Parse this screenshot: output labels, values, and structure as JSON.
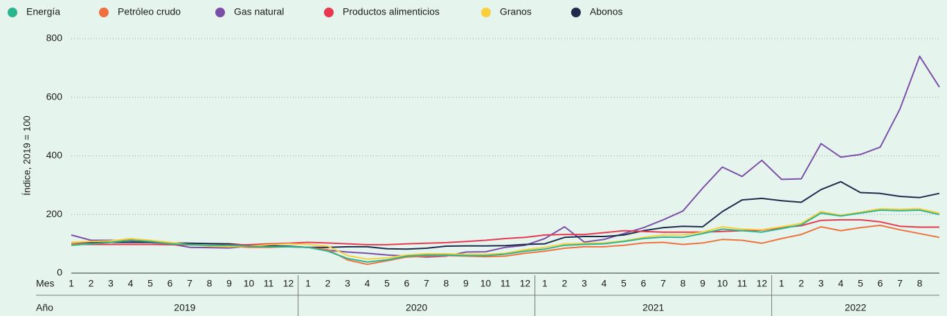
{
  "chart_data": {
    "type": "line",
    "ylabel": "Índice, 2019 = 100",
    "x_row_labels": [
      "Mes",
      "Año"
    ],
    "x_groups": [
      "2019",
      "2020",
      "2021",
      "2022"
    ],
    "categories": [
      1,
      2,
      3,
      4,
      5,
      6,
      7,
      8,
      9,
      10,
      11,
      12,
      1,
      2,
      3,
      4,
      5,
      6,
      7,
      8,
      9,
      10,
      11,
      12,
      1,
      2,
      3,
      4,
      5,
      6,
      7,
      8,
      9,
      10,
      11,
      12,
      1,
      2,
      3,
      4,
      5,
      6,
      7,
      8,
      null
    ],
    "ylim": [
      0,
      800
    ],
    "yticks": [
      0,
      200,
      400,
      600,
      800
    ],
    "grid": true,
    "legend": "top",
    "series": [
      {
        "name": "Energía",
        "color": "#2bb58f",
        "values": [
          95,
          100,
          105,
          112,
          108,
          100,
          97,
          95,
          95,
          92,
          90,
          90,
          88,
          75,
          50,
          38,
          45,
          58,
          62,
          62,
          60,
          60,
          65,
          75,
          82,
          95,
          98,
          100,
          108,
          118,
          123,
          122,
          135,
          150,
          145,
          140,
          152,
          165,
          205,
          195,
          205,
          215,
          213,
          215,
          200
        ]
      },
      {
        "name": "Petróleo crudo",
        "color": "#f0703d",
        "values": [
          100,
          100,
          105,
          115,
          110,
          100,
          97,
          95,
          92,
          88,
          88,
          90,
          88,
          80,
          45,
          30,
          42,
          55,
          58,
          60,
          58,
          56,
          58,
          68,
          75,
          85,
          90,
          90,
          95,
          103,
          105,
          98,
          103,
          115,
          112,
          102,
          118,
          132,
          158,
          145,
          155,
          163,
          148,
          135,
          122
        ]
      },
      {
        "name": "Gas natural",
        "color": "#7b4ea8",
        "values": [
          130,
          112,
          112,
          110,
          105,
          100,
          88,
          87,
          86,
          92,
          95,
          90,
          88,
          78,
          72,
          68,
          62,
          58,
          55,
          58,
          72,
          73,
          88,
          95,
          118,
          158,
          106,
          115,
          135,
          155,
          182,
          212,
          290,
          362,
          330,
          385,
          320,
          322,
          442,
          396,
          405,
          430,
          560,
          740,
          635
        ]
      },
      {
        "name": "Productos alimenticios",
        "color": "#e8374f",
        "values": [
          98,
          98,
          98,
          98,
          98,
          97,
          96,
          95,
          96,
          97,
          100,
          102,
          105,
          103,
          100,
          97,
          97,
          100,
          102,
          104,
          108,
          112,
          118,
          122,
          130,
          132,
          132,
          138,
          145,
          142,
          140,
          140,
          140,
          142,
          145,
          147,
          155,
          162,
          180,
          182,
          182,
          175,
          160,
          157,
          157
        ]
      },
      {
        "name": "Granos",
        "color": "#f9cf3e",
        "values": [
          105,
          108,
          110,
          118,
          112,
          105,
          97,
          92,
          90,
          92,
          97,
          100,
          98,
          92,
          60,
          48,
          52,
          62,
          66,
          66,
          64,
          64,
          68,
          80,
          88,
          100,
          102,
          103,
          110,
          122,
          130,
          130,
          140,
          158,
          150,
          148,
          158,
          170,
          210,
          198,
          208,
          220,
          218,
          220,
          205
        ]
      },
      {
        "name": "Abonos",
        "color": "#1e2a4c",
        "values": [
          105,
          105,
          105,
          105,
          105,
          103,
          102,
          101,
          100,
          95,
          93,
          92,
          88,
          88,
          90,
          90,
          83,
          82,
          85,
          92,
          93,
          93,
          94,
          98,
          100,
          122,
          125,
          125,
          130,
          145,
          155,
          160,
          158,
          210,
          250,
          255,
          247,
          242,
          285,
          312,
          275,
          272,
          262,
          258,
          272
        ]
      }
    ]
  }
}
